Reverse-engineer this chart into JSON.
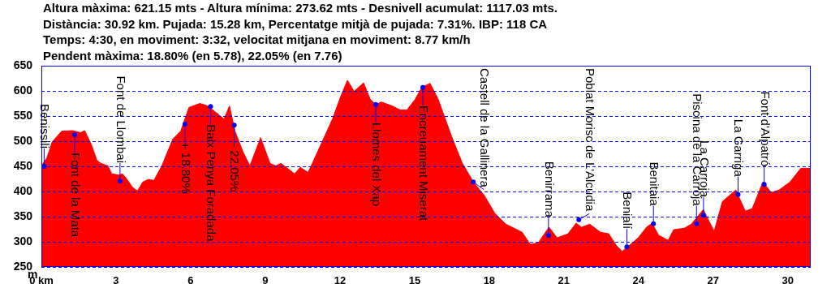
{
  "chart_data": {
    "type": "area",
    "title": "Altura màxima: 621.15 mts - Altura mínima: 273.62 mts - Desnivell acumulat: 1117.03 mts.",
    "subtitle": "Distància: 30.92 km. Pujada: 15.28 km, Percentatge mitjà de pujada: 7.31%. IBP: 118 CA\nTemps: 4:30, en moviment: 3:32, velocitat mitjana en moviment: 8.77 km/h\nPendent màxima: 18.80% (en 5.78), 22.05% (en 7.76)",
    "ylabel": "m",
    "color": "#ff0000",
    "grid": "y",
    "x": [
      0,
      0.22,
      0.44,
      0.82,
      1.25,
      1.58,
      1.74,
      2.01,
      2.23,
      2.39,
      2.67,
      2.83,
      3.1,
      3.26,
      3.43,
      3.65,
      3.86,
      4.08,
      4.3,
      4.52,
      4.84,
      5.28,
      5.6,
      5.93,
      6.37,
      6.69,
      7.02,
      7.34,
      7.56,
      7.78,
      8.11,
      8.38,
      8.81,
      9.19,
      9.42,
      9.63,
      10.18,
      10.4,
      10.72,
      10.89,
      11.7,
      12.03,
      12.3,
      12.57,
      12.95,
      13.22,
      13.44,
      13.66,
      14.1,
      14.42,
      14.69,
      15.02,
      15.29,
      15.62,
      15.95,
      16.49,
      16.92,
      17.36,
      17.79,
      18.23,
      18.67,
      19.32,
      19.65,
      19.97,
      20.4,
      20.73,
      21.17,
      21.49,
      21.71,
      22.04,
      22.47,
      22.8,
      23.12,
      23.34,
      23.61,
      23.99,
      24.32,
      24.54,
      24.81,
      25.19,
      25.41,
      25.84,
      26.12,
      26.6,
      27.04,
      27.37,
      27.91,
      28.29,
      28.57,
      29,
      29.33,
      29.65,
      30.09,
      30.52,
      30.92
    ],
    "values": [
      451,
      467,
      499,
      520,
      521,
      517,
      521,
      493,
      462,
      456,
      451,
      435,
      433,
      435,
      425,
      409,
      401,
      419,
      424,
      422,
      451,
      504,
      520,
      567,
      575,
      570,
      557,
      544,
      570,
      520,
      478,
      451,
      507,
      456,
      451,
      456,
      435,
      448,
      438,
      456,
      544,
      589,
      621,
      599,
      616,
      583,
      573,
      578,
      570,
      562,
      562,
      583,
      607,
      615,
      583,
      509,
      456,
      419,
      393,
      356,
      335,
      319,
      295,
      298,
      329,
      308,
      316,
      337,
      329,
      335,
      319,
      316,
      292,
      281,
      292,
      308,
      329,
      337,
      313,
      303,
      324,
      327,
      335,
      364,
      321,
      380,
      403,
      361,
      366,
      419,
      398,
      403,
      419,
      446,
      446
    ],
    "xlim": [
      0,
      30.92
    ],
    "xticks": [
      {
        "value": 0,
        "label": "0 km"
      },
      3,
      6,
      9,
      12,
      15,
      18,
      21,
      24,
      27,
      30
    ],
    "ylim": [
      250,
      650
    ],
    "yticks": [
      250,
      300,
      350,
      400,
      450,
      500,
      550,
      600,
      650
    ],
    "annotations": [
      {
        "text": "Benissili",
        "x": 0.11,
        "y": 450
      },
      {
        "text": "Font de la Mata",
        "x": 1.34,
        "y": 513
      },
      {
        "text": "Font de Llombai",
        "x": 3.16,
        "y": 421
      },
      {
        "text": "+ 18.80%",
        "x": 5.77,
        "y": 534
      },
      {
        "text": "Baix Penya Foradada",
        "x": 6.8,
        "y": 569
      },
      {
        "text": "- 22.05%",
        "x": 7.75,
        "y": 532
      },
      {
        "text": "Llomes del Xap",
        "x": 13.44,
        "y": 573
      },
      {
        "text": "Encreuament Miserat",
        "x": 15.33,
        "y": 607
      },
      {
        "text": "Castell de la Gallinera",
        "x": 17.36,
        "y": 419
      },
      {
        "text": "Benirrama",
        "x": 20.38,
        "y": 313
      },
      {
        "text": "Poblat Morisc de L'Alcudia",
        "x": 21.6,
        "y": 344
      },
      {
        "text": "Benialí",
        "x": 23.53,
        "y": 290
      },
      {
        "text": "Benitaia",
        "x": 24.6,
        "y": 336
      },
      {
        "text": "Piscina de la Carroja",
        "x": 26.33,
        "y": 336
      },
      {
        "text": "La Carroja",
        "x": 26.61,
        "y": 353
      },
      {
        "text": "La Garriga",
        "x": 28,
        "y": 394
      },
      {
        "text": "Font d'Alpatró",
        "x": 29.05,
        "y": 414
      }
    ]
  }
}
